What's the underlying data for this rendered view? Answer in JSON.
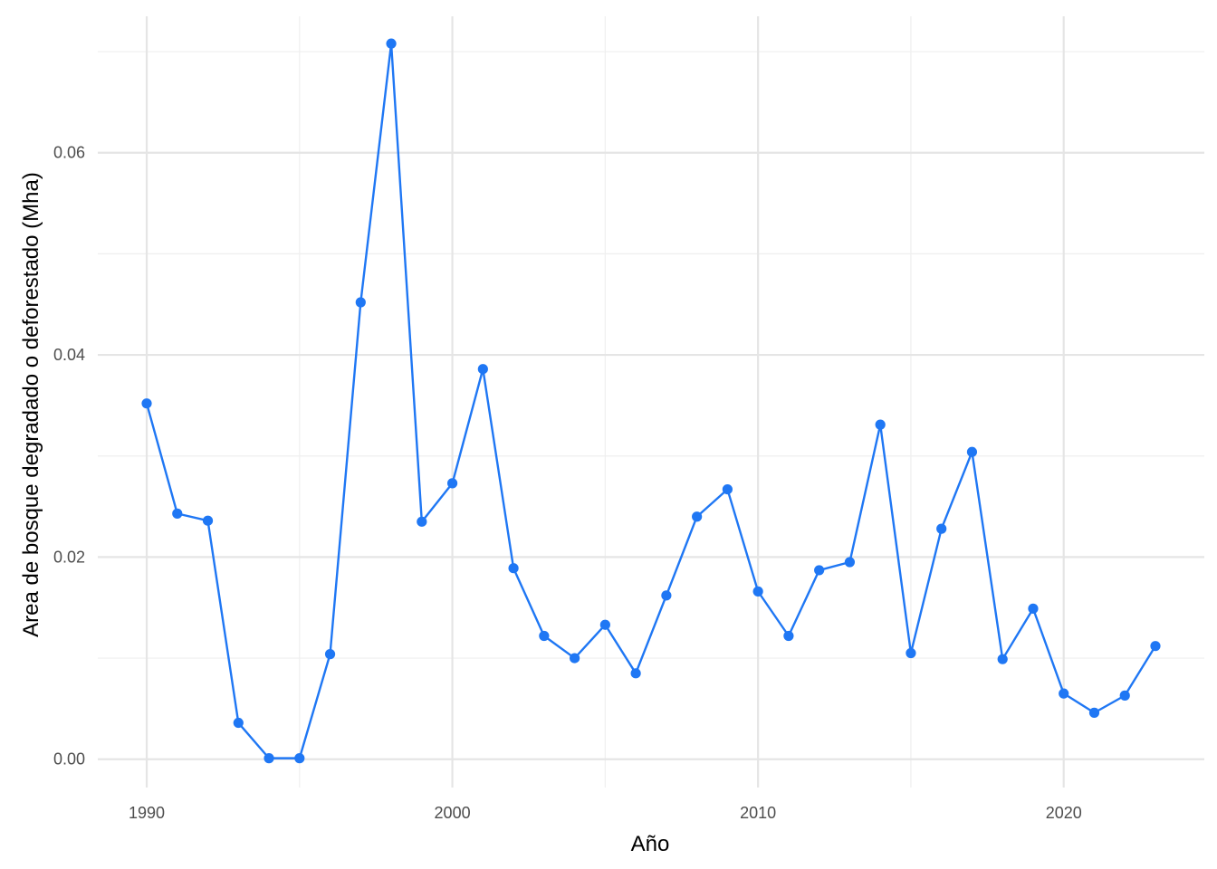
{
  "chart_data": {
    "type": "line",
    "title": "",
    "xlabel": "Año",
    "ylabel": "Area de bosque degradado o deforestado (Mha)",
    "xlim": [
      1988.4,
      2024.6
    ],
    "ylim": [
      -0.0028,
      0.0735
    ],
    "x_ticks": [
      1990,
      2000,
      2010,
      2020
    ],
    "x_tick_labels": [
      "1990",
      "2000",
      "2010",
      "2020"
    ],
    "y_ticks": [
      0.0,
      0.02,
      0.04,
      0.06
    ],
    "y_tick_labels": [
      "0.00",
      "0.02",
      "0.04",
      "0.06"
    ],
    "grid": true,
    "legend": "none",
    "colors": {
      "series": "#1f77f4",
      "grid": "#e5e5e5",
      "tick_text": "#4d4d4d"
    },
    "series": [
      {
        "x": [
          1990,
          1991,
          1992,
          1993,
          1994,
          1995,
          1996,
          1997,
          1998,
          1999,
          2000,
          2001,
          2002,
          2003,
          2004,
          2005,
          2006,
          2007,
          2008,
          2009,
          2010,
          2011,
          2012,
          2013,
          2014,
          2015,
          2016,
          2017,
          2018,
          2019,
          2020,
          2021,
          2022,
          2023
        ],
        "values": [
          0.0352,
          0.0243,
          0.0236,
          0.0036,
          0.0001,
          0.0001,
          0.0104,
          0.0452,
          0.0708,
          0.0235,
          0.0273,
          0.0386,
          0.0189,
          0.0122,
          0.01,
          0.0133,
          0.0085,
          0.0162,
          0.024,
          0.0267,
          0.0166,
          0.0122,
          0.0187,
          0.0195,
          0.0331,
          0.0105,
          0.0228,
          0.0304,
          0.0099,
          0.0149,
          0.0065,
          0.0046,
          0.0063,
          0.0112
        ]
      }
    ]
  }
}
